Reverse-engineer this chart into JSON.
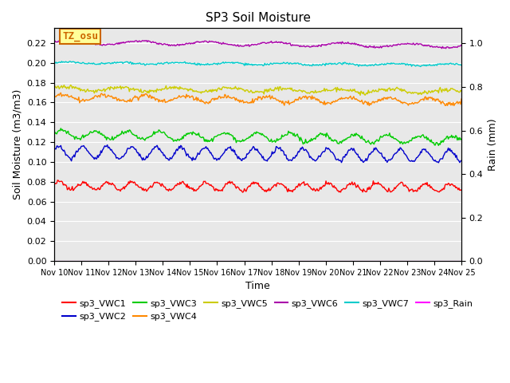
{
  "title": "SP3 Soil Moisture",
  "xlabel": "Time",
  "ylabel_left": "Soil Moisture (m3/m3)",
  "ylabel_right": "Rain (mm)",
  "ylim_left": [
    0.0,
    0.235
  ],
  "ylim_right": [
    0.0,
    1.07
  ],
  "yticks_left": [
    0.0,
    0.02,
    0.04,
    0.06,
    0.08,
    0.1,
    0.12,
    0.14,
    0.16,
    0.18,
    0.2,
    0.22
  ],
  "yticks_right": [
    0.0,
    0.2,
    0.4,
    0.6,
    0.8,
    1.0
  ],
  "xtick_labels": [
    "Nov 10",
    "Nov 11",
    "Nov 12",
    "Nov 13",
    "Nov 14",
    "Nov 15",
    "Nov 16",
    "Nov 17",
    "Nov 18",
    "Nov 19",
    "Nov 20",
    "Nov 21",
    "Nov 22",
    "Nov 23",
    "Nov 24",
    "Nov 25"
  ],
  "series_order": [
    "sp3_VWC1",
    "sp3_VWC2",
    "sp3_VWC3",
    "sp3_VWC4",
    "sp3_VWC5",
    "sp3_VWC6",
    "sp3_VWC7",
    "sp3_Rain"
  ],
  "series": {
    "sp3_VWC1": {
      "color": "#ff0000",
      "base": 0.076,
      "noise_scale": 0.004,
      "trend": -0.002,
      "is_rain": false
    },
    "sp3_VWC2": {
      "color": "#0000cc",
      "base": 0.11,
      "noise_scale": 0.005,
      "trend": -0.004,
      "is_rain": false
    },
    "sp3_VWC3": {
      "color": "#00cc00",
      "base": 0.128,
      "noise_scale": 0.004,
      "trend": -0.005,
      "is_rain": false
    },
    "sp3_VWC4": {
      "color": "#ff8800",
      "base": 0.165,
      "noise_scale": 0.003,
      "trend": -0.004,
      "is_rain": false
    },
    "sp3_VWC5": {
      "color": "#cccc00",
      "base": 0.174,
      "noise_scale": 0.002,
      "trend": -0.003,
      "is_rain": false
    },
    "sp3_VWC6": {
      "color": "#aa00aa",
      "base": 0.221,
      "noise_scale": 0.002,
      "trend": -0.004,
      "is_rain": false
    },
    "sp3_VWC7": {
      "color": "#00cccc",
      "base": 0.2,
      "noise_scale": 0.001,
      "trend": -0.002,
      "is_rain": false
    },
    "sp3_Rain": {
      "color": "#ff00ff",
      "base": 0.0,
      "noise_scale": 0.0,
      "trend": 0.0,
      "is_rain": true
    }
  },
  "watermark": "TZ_osu",
  "watermark_color": "#cc6600",
  "watermark_bg": "#ffff99",
  "watermark_edge": "#cc6600",
  "background_color": "#e8e8e8",
  "grid_color": "#ffffff",
  "fig_bg": "#ffffff",
  "legend_order": [
    "sp3_VWC1",
    "sp3_VWC2",
    "sp3_VWC3",
    "sp3_VWC4",
    "sp3_VWC5",
    "sp3_VWC6",
    "sp3_VWC7",
    "sp3_Rain"
  ]
}
